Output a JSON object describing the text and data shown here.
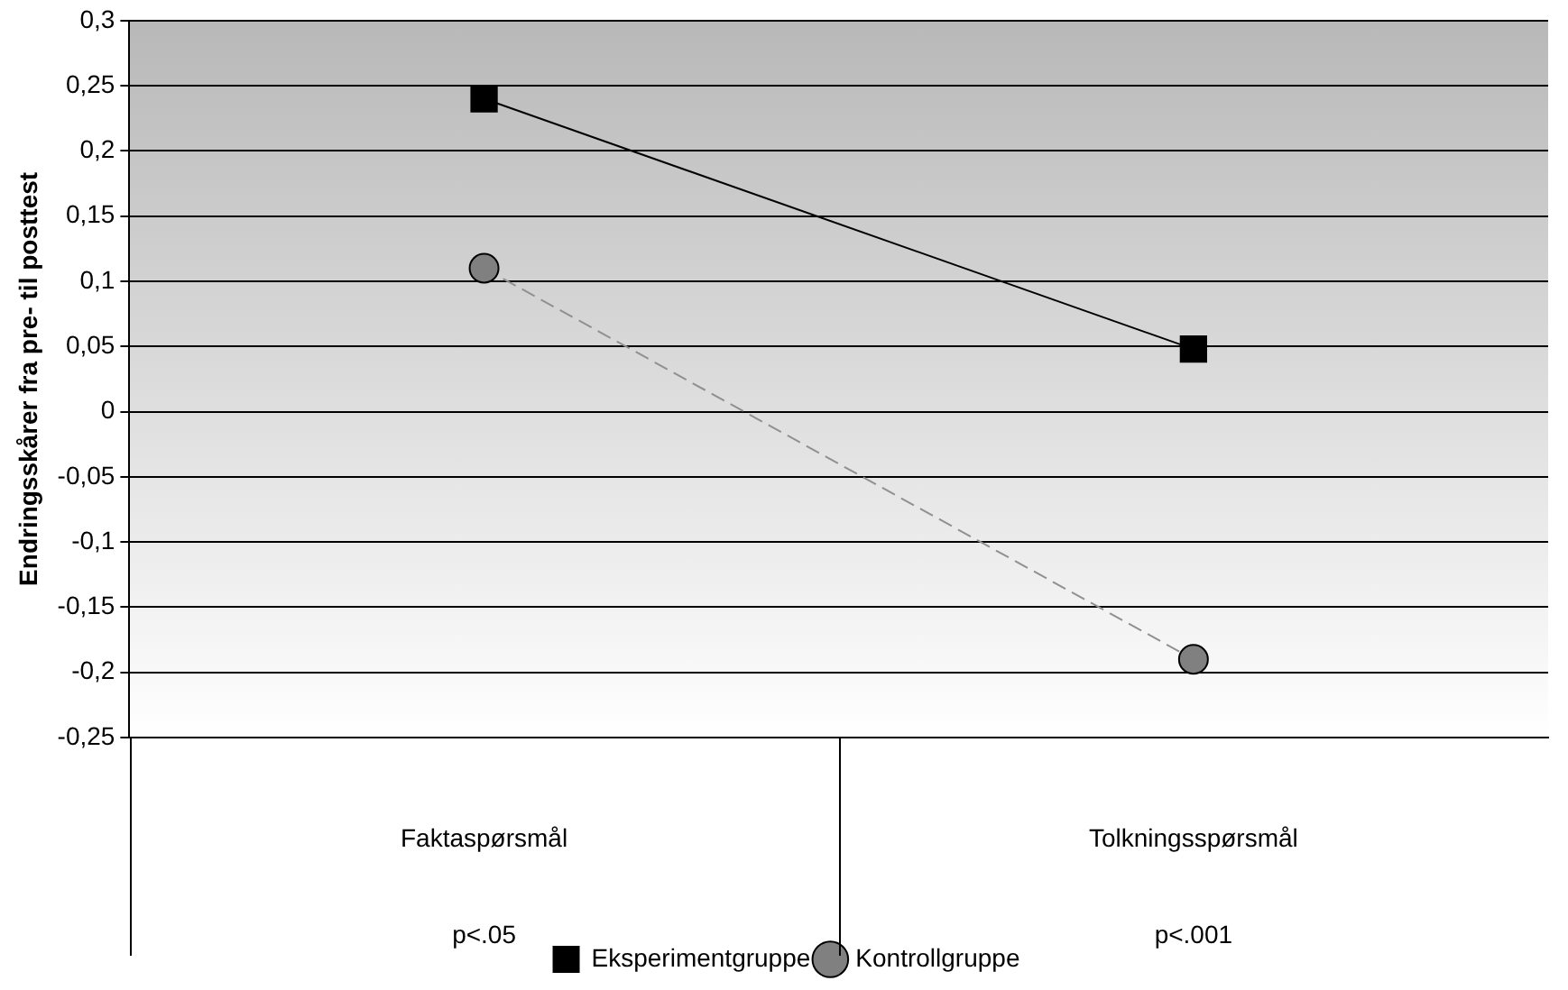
{
  "chart_data": {
    "type": "line",
    "ylabel": "Endringsskårer fra pre- til posttest",
    "categories": [
      "Faktaspørsmål",
      "Tolkningsspørsmål"
    ],
    "series": [
      {
        "name": "Eksperimentgruppe",
        "color": "#000000",
        "values": [
          0.24,
          0.048
        ],
        "marker": "square",
        "line_style": "solid"
      },
      {
        "name": "Kontrollgruppe",
        "color": "#808080",
        "values": [
          0.11,
          -0.19
        ],
        "marker": "circle",
        "line_style": "dashed"
      }
    ],
    "ylim": [
      -0.25,
      0.3
    ],
    "yticks": [
      {
        "value": -0.25,
        "label": "-0,25"
      },
      {
        "value": -0.2,
        "label": "-0,2"
      },
      {
        "value": -0.15,
        "label": "-0,15"
      },
      {
        "value": -0.1,
        "label": "-0,1"
      },
      {
        "value": -0.05,
        "label": "-0,05"
      },
      {
        "value": 0,
        "label": "0"
      },
      {
        "value": 0.05,
        "label": "0,05"
      },
      {
        "value": 0.1,
        "label": "0,1"
      },
      {
        "value": 0.15,
        "label": "0,15"
      },
      {
        "value": 0.2,
        "label": "0,2"
      },
      {
        "value": 0.25,
        "label": "0,25"
      },
      {
        "value": 0.3,
        "label": "0,3"
      }
    ],
    "annotations": [
      "p<.05",
      "p<.001"
    ],
    "grid": "y",
    "legend": "bottom"
  }
}
